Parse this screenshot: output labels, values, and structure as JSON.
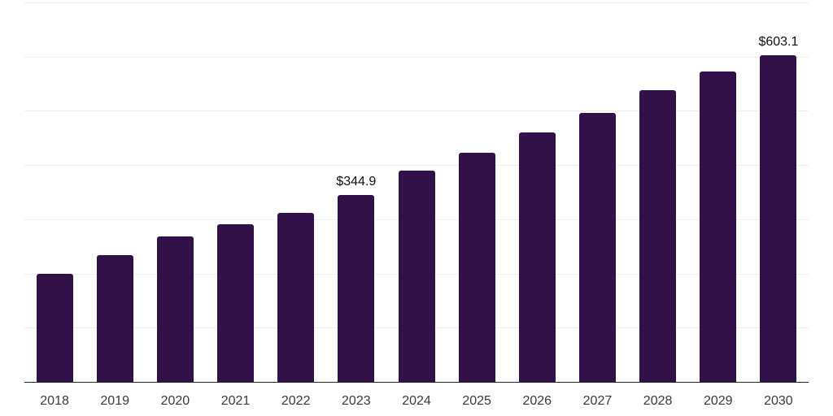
{
  "chart_data": {
    "type": "bar",
    "title": "",
    "xlabel": "",
    "ylabel": "",
    "categories": [
      "2018",
      "2019",
      "2020",
      "2021",
      "2022",
      "2023",
      "2024",
      "2025",
      "2026",
      "2027",
      "2028",
      "2029",
      "2030"
    ],
    "values": [
      199.4,
      233.4,
      268.2,
      290.6,
      312.0,
      344.9,
      389.3,
      422.2,
      460.6,
      495.5,
      538.4,
      573.2,
      603.1
    ],
    "annotations": [
      {
        "category": "2023",
        "text": "$344.9"
      },
      {
        "category": "2030",
        "text": "$603.1"
      }
    ],
    "ylim": [
      0,
      700
    ],
    "gridline_step": 100,
    "grid": true,
    "legend": false,
    "y_tick_labels_visible": false,
    "colors": {
      "bar": "#321149",
      "grid": "#efefef",
      "axis": "#26262a",
      "tick_label": "#3a3a3a",
      "annotation": "#101010",
      "background": "#ffffff"
    }
  }
}
